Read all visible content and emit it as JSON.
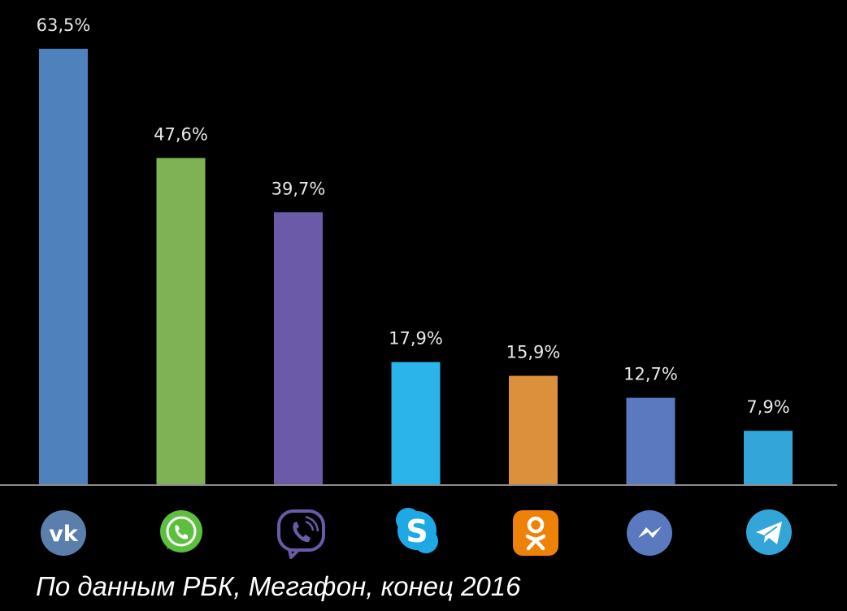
{
  "chart_data": {
    "type": "bar",
    "title": "",
    "xlabel": "",
    "ylabel": "",
    "ylim": [
      0,
      63.5
    ],
    "grid": false,
    "legend": "none",
    "categories": [
      "VK",
      "WhatsApp",
      "Viber",
      "Skype",
      "Odnoklassniki",
      "Facebook Messenger",
      "Telegram"
    ],
    "category_icons": [
      "vk-icon",
      "whatsapp-icon",
      "viber-icon",
      "skype-icon",
      "odnoklassniki-icon",
      "messenger-icon",
      "telegram-icon"
    ],
    "values": [
      63.5,
      47.6,
      39.7,
      17.9,
      15.9,
      12.7,
      7.9
    ],
    "value_labels": [
      "63,5%",
      "47,6%",
      "39,7%",
      "17,9%",
      "15,9%",
      "12,7%",
      "7,9%"
    ],
    "colors": [
      "#4f81bd",
      "#7fb254",
      "#6a5aa8",
      "#2bb4ea",
      "#dd903c",
      "#5a79bf",
      "#34a5d8"
    ]
  },
  "colors": {
    "background": "#000000",
    "axis": "#8c8c8c",
    "label": "#e8e8e8"
  },
  "footer": {
    "source": "По данным РБК, Мегафон, конец 2016"
  }
}
